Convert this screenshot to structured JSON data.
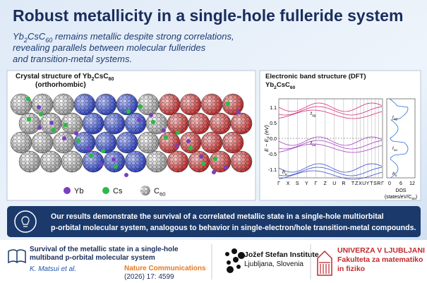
{
  "formula": [
    "Yb",
    "2",
    "Cs",
    "C",
    "60"
  ],
  "header": {
    "title": "Robust metallicity in a single-hole fulleride system",
    "subtitle_lines": [
      " remains metallic despite strong correlations,",
      "revealing parallels between molecular fullerides",
      "and transition-metal systems."
    ]
  },
  "crystal_panel": {
    "title": "Crystal structure of ",
    "subtitle": "(orthorhombic)",
    "legend": [
      "Yb",
      "Cs"
    ]
  },
  "band_panel": {
    "title": "Electronic band structure (DFT)",
    "ylabel": [
      "E − E",
      "F",
      " (eV)"
    ],
    "yticks": [
      "1.1",
      "0.5",
      "0.0",
      "-0.5",
      "-1.1"
    ],
    "kpoints": [
      "Γ",
      "X",
      "S",
      "Y",
      "Γ",
      "Z",
      "U",
      "R",
      "T",
      "Z",
      "X",
      "U",
      "Y",
      "T",
      "S",
      "R",
      "Γ"
    ],
    "band_labels": [
      [
        "t",
        "1g"
      ],
      [
        "t",
        "1u"
      ],
      [
        "h",
        "u"
      ]
    ],
    "dos_ticks": [
      "0",
      "6",
      "12"
    ],
    "dos_label": "DOS",
    "dos_unit": [
      "(states/eV/C",
      "60",
      ")"
    ]
  },
  "summary": [
    "Our results demonstrate the survival of a correlated metallic state in a single-hole multiorbital",
    "p-orbital molecular system, analogous to behavior in single-electron/hole transition-metal compounds."
  ],
  "footer": {
    "paper_title": [
      "Survival of the metallic state in a single-hole",
      "multiband p-orbital molecular system"
    ],
    "authors": "K. Matsui et al.",
    "journal": "Nature Communications",
    "citation": "(2026) 17: 4599",
    "institute": [
      "Jožef Stefan Institute",
      "Ljubljana, Slovenia"
    ],
    "university": [
      "UNIVERZA V LJUBLJANI",
      "Fakulteta za matematiko",
      "in fiziko"
    ]
  }
}
